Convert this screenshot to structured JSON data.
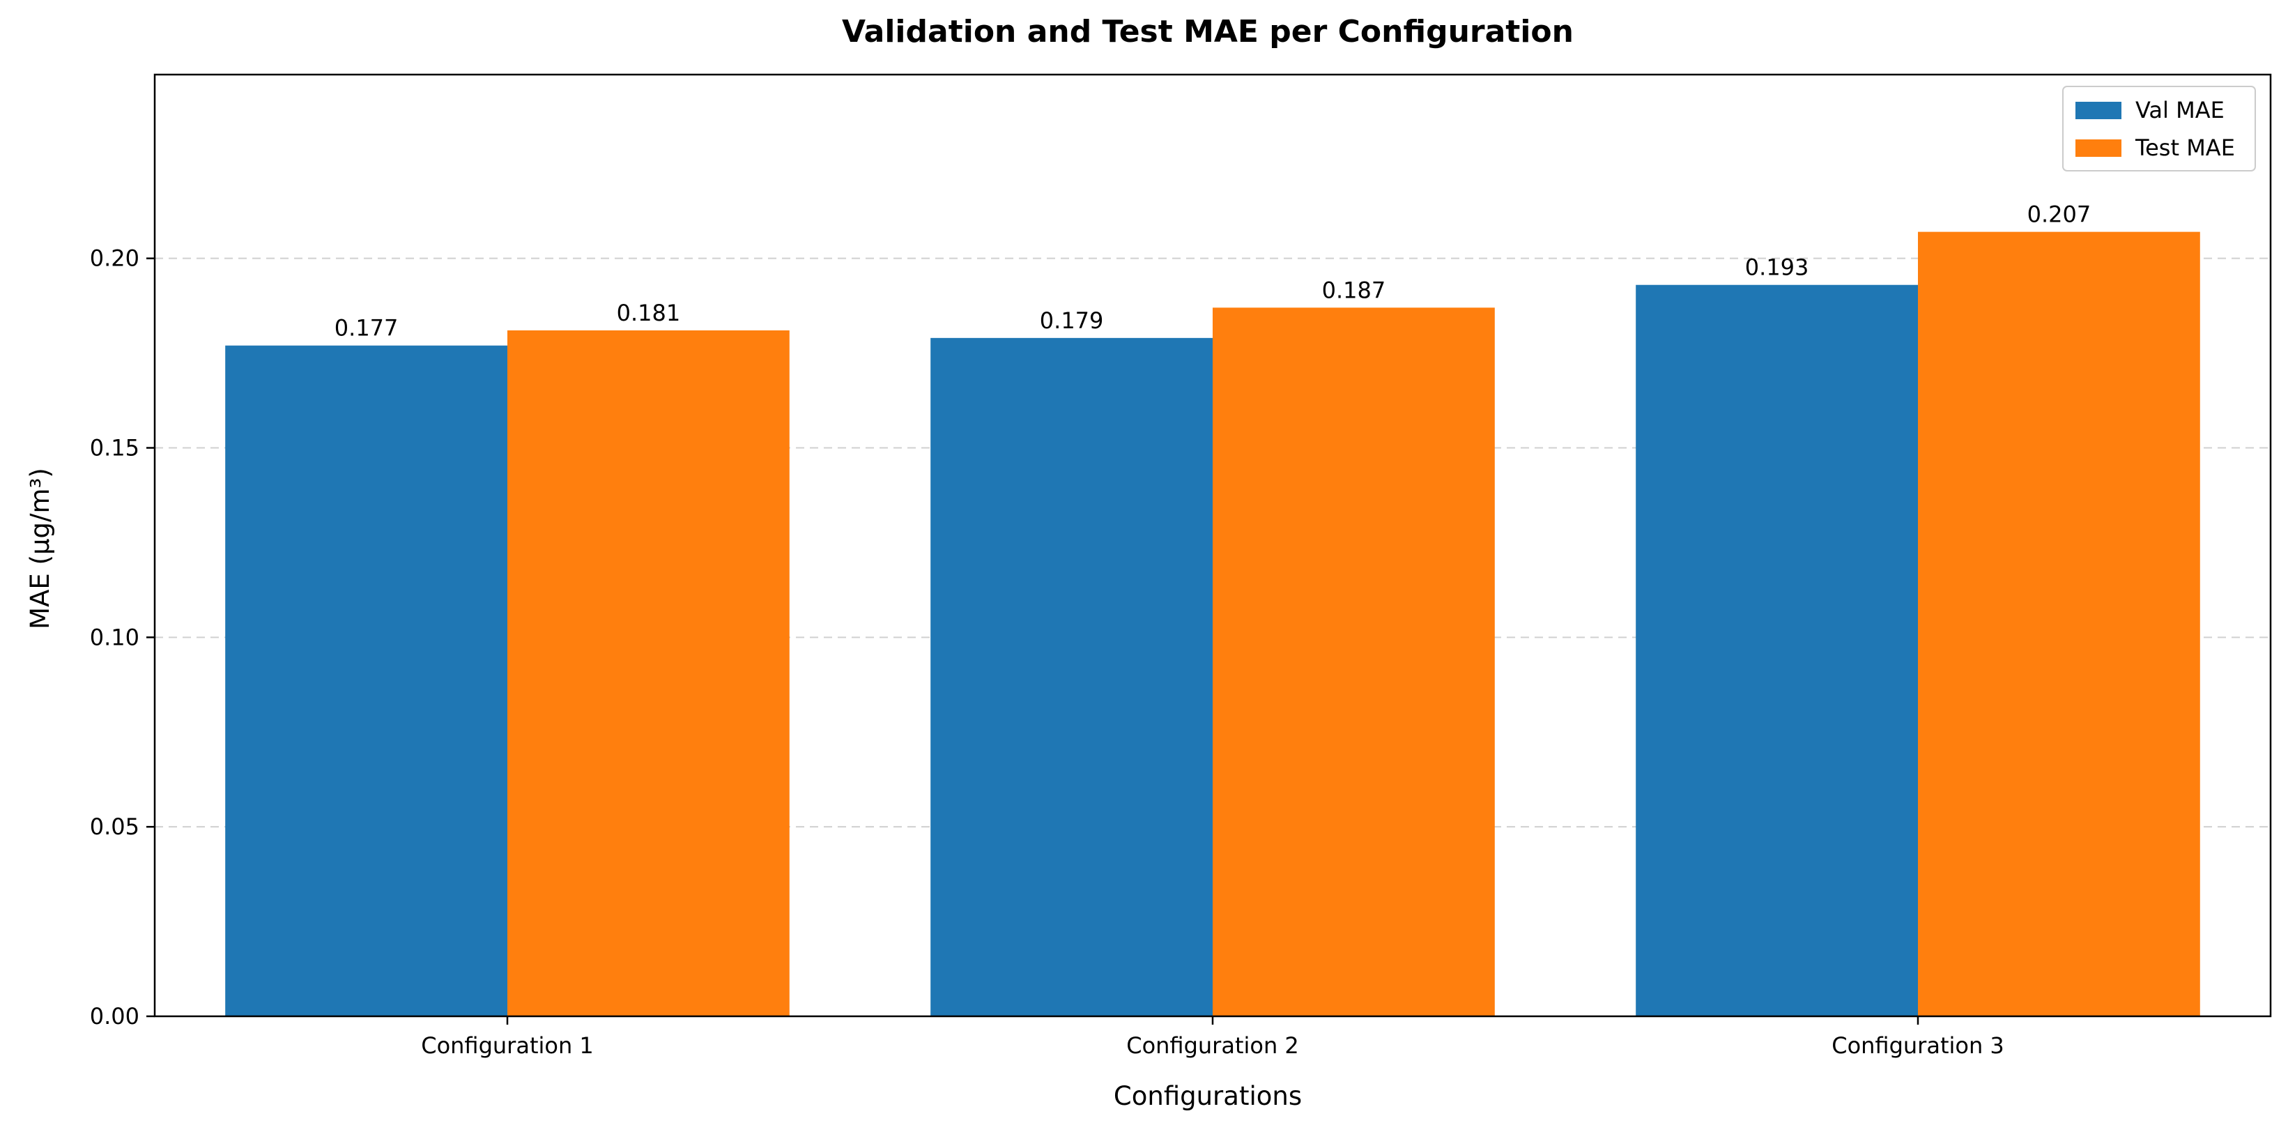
{
  "chart_data": {
    "type": "bar",
    "title": "Validation and Test MAE per Configuration",
    "xlabel": "Configurations",
    "ylabel": "MAE (μg/m³)",
    "categories": [
      "Configuration 1",
      "Configuration 2",
      "Configuration 3"
    ],
    "series": [
      {
        "name": "Val MAE",
        "color": "#1f77b4",
        "values": [
          0.177,
          0.179,
          0.193
        ],
        "labels": [
          "0.177",
          "0.179",
          "0.193"
        ]
      },
      {
        "name": "Test MAE",
        "color": "#ff7f0e",
        "values": [
          0.181,
          0.187,
          0.207
        ],
        "labels": [
          "0.181",
          "0.187",
          "0.207"
        ]
      }
    ],
    "ylim": [
      0,
      0.2485
    ],
    "yticks": [
      0.0,
      0.05,
      0.1,
      0.15,
      0.2
    ],
    "ytick_labels": [
      "0.00",
      "0.05",
      "0.10",
      "0.15",
      "0.20"
    ],
    "grid": "y, dashed",
    "legend_position": "top-right"
  }
}
